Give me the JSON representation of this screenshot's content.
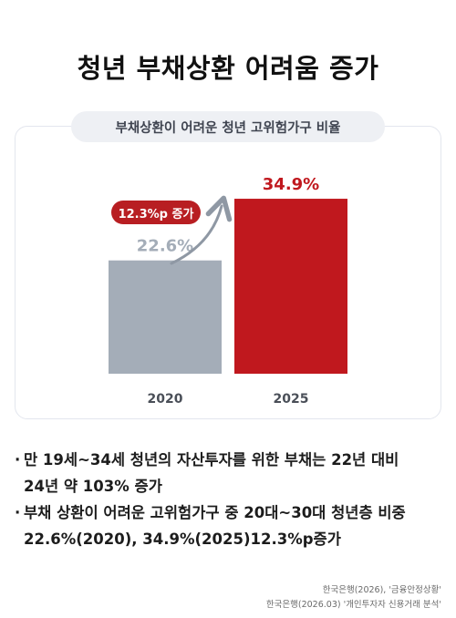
{
  "title": "청년 부채상환 어려움 증가",
  "subtitle": "부채상환이 어려운 청년 고위험가구 비율",
  "badge": "12.3%p 증가",
  "chart_data": {
    "type": "bar",
    "categories": [
      "2020",
      "2025"
    ],
    "values": [
      22.6,
      34.9
    ],
    "value_labels": [
      "22.6%",
      "34.9%"
    ],
    "colors": [
      "#a4adb8",
      "#c0181e"
    ],
    "label_colors": [
      "#a4adb8",
      "#c0181e"
    ],
    "ylim": [
      0,
      40
    ],
    "grid": false,
    "annotation": "12.3%p 증가"
  },
  "bullets": [
    "만 19세~34세 청년의 자산투자를 위한 부채는 22년 대비\n24년 약 103% 증가",
    "부채 상환이 어려운 고위험가구 중 20대~30대 청년층 비중\n22.6%(2020), 34.9%(2025)12.3%p증가"
  ],
  "bullet_marker": "·",
  "sources": [
    "한국은행(2026), '금융안정상황'",
    "한국은행(2026.03) '개인투자자 신용거래 분석'"
  ]
}
